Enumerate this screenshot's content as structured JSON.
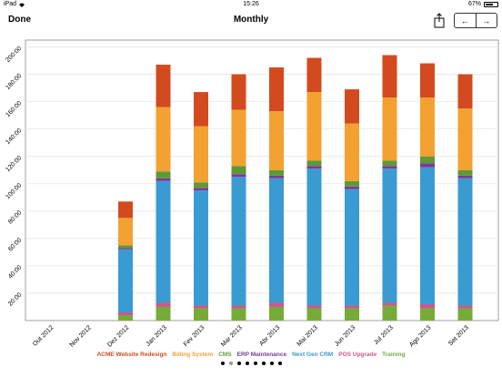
{
  "status": {
    "device": "iPad",
    "time": "15:26",
    "battery": "67%",
    "battery_level": 0.67
  },
  "nav": {
    "done_label": "Done",
    "title": "Monthly",
    "prev_label": "←",
    "next_label": "→"
  },
  "colors": {
    "ACME Website Redesign": "#d44a1f",
    "Billing System": "#f3a131",
    "CMS": "#5e9a34",
    "ERP Maintenance": "#7a3a9a",
    "Next Gen CRM": "#3a9bd2",
    "POS Upgrade": "#d0578a",
    "Training": "#76ab3a"
  },
  "chart_data": {
    "type": "bar",
    "stacked": true,
    "categories": [
      "Out 2012",
      "Nov 2012",
      "Dez 2012",
      "Jan 2013",
      "Fev 2013",
      "Mar 2013",
      "Abr 2013",
      "Mai 2013",
      "Jun 2013",
      "Jul 2013",
      "Ago 2013",
      "Set 2013"
    ],
    "yticks": [
      "20:00",
      "40:00",
      "60:00",
      "80:00",
      "100:00",
      "120:00",
      "140:00",
      "160:00",
      "180:00",
      "200:00"
    ],
    "ylim": [
      0,
      205
    ],
    "grid": true,
    "legend_position": "bottom",
    "series": [
      {
        "name": "Training",
        "values": [
          0,
          0,
          4,
          10,
          9,
          9,
          10,
          9,
          9,
          11,
          9,
          9
        ]
      },
      {
        "name": "POS Upgrade",
        "values": [
          0,
          0,
          2,
          3,
          2,
          2,
          3,
          2,
          2,
          2,
          3,
          2
        ]
      },
      {
        "name": "Next Gen CRM",
        "values": [
          0,
          0,
          46,
          89,
          84,
          94,
          91,
          100,
          85,
          98,
          100,
          93
        ]
      },
      {
        "name": "ERP Maintenance",
        "values": [
          0,
          0,
          1,
          2,
          2,
          2,
          2,
          2,
          2,
          2,
          3,
          2
        ]
      },
      {
        "name": "CMS",
        "values": [
          0,
          0,
          2,
          5,
          4,
          6,
          4,
          4,
          4,
          4,
          5,
          4
        ]
      },
      {
        "name": "Billing System",
        "values": [
          0,
          0,
          20,
          47,
          41,
          41,
          43,
          50,
          42,
          46,
          43,
          45
        ]
      },
      {
        "name": "ACME Website Redesign",
        "values": [
          0,
          0,
          12,
          31,
          25,
          26,
          32,
          25,
          25,
          31,
          25,
          25
        ]
      }
    ]
  },
  "pager": {
    "count": 8,
    "active": 1
  }
}
